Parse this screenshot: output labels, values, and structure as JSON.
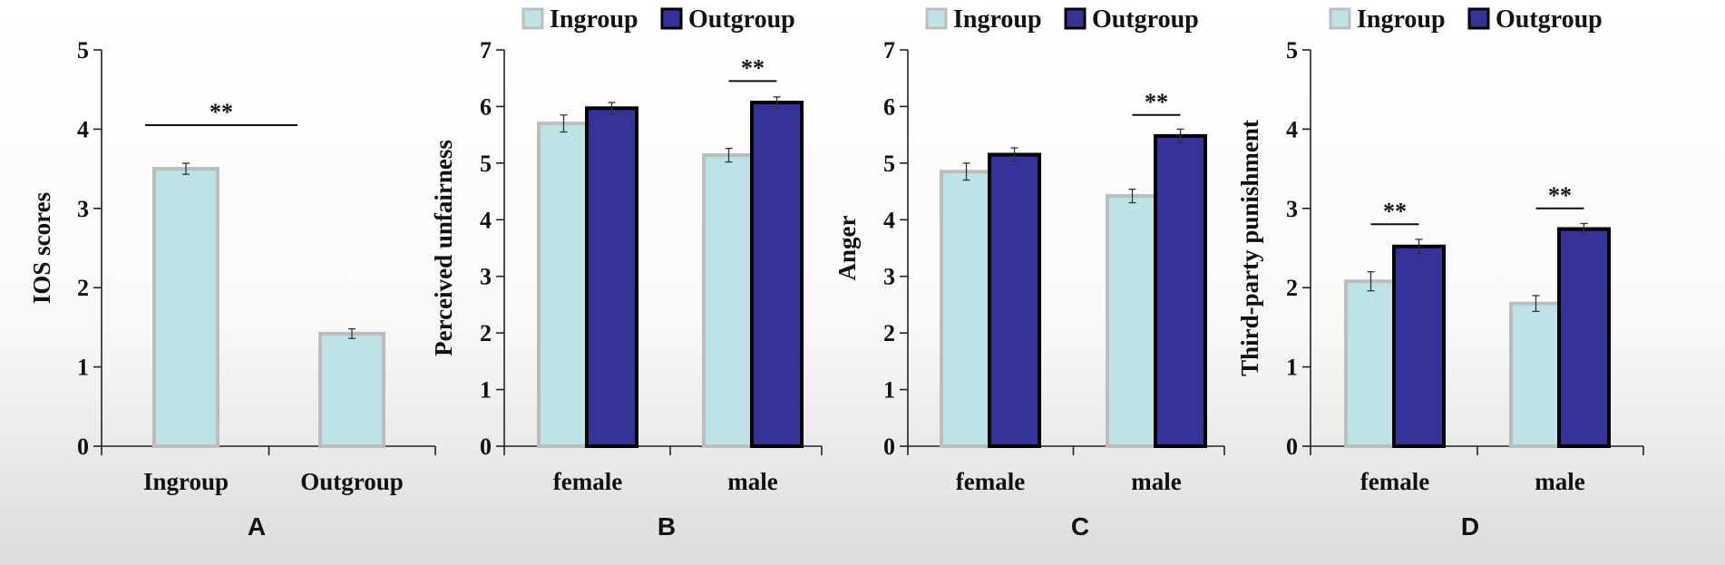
{
  "colors": {
    "ingroup": "#bde3e6",
    "ingroup_border": "#bdbdbd",
    "outgroup": "#333399",
    "outgroup_border": "#000000"
  },
  "chart_data": [
    {
      "panel": "A",
      "type": "bar",
      "title": "",
      "xlabel": "",
      "ylabel": "IOS scores",
      "ylim": [
        0,
        5
      ],
      "yticks": [
        0,
        1,
        2,
        3,
        4,
        5
      ],
      "categories": [
        "Ingroup",
        "Outgroup"
      ],
      "series": [
        {
          "name": "Ingroup",
          "values": [
            3.5,
            1.42
          ],
          "errors": [
            0.07,
            0.06
          ],
          "styles": [
            "ingroup",
            "ingroup"
          ]
        }
      ],
      "legend": [],
      "annotations": [
        {
          "text": "**",
          "from": 0,
          "to": 1,
          "y": 4.05
        }
      ]
    },
    {
      "panel": "B",
      "type": "bar",
      "title": "",
      "xlabel": "",
      "ylabel": "Perceived unfairness",
      "ylim": [
        0,
        7
      ],
      "yticks": [
        0,
        1,
        2,
        3,
        4,
        5,
        6,
        7
      ],
      "categories": [
        "female",
        "male"
      ],
      "series": [
        {
          "name": "Ingroup",
          "values": [
            5.7,
            5.14
          ],
          "errors": [
            0.15,
            0.12
          ]
        },
        {
          "name": "Outgroup",
          "values": [
            5.97,
            6.07
          ],
          "errors": [
            0.1,
            0.1
          ]
        }
      ],
      "legend": [
        "Ingroup",
        "Outgroup"
      ],
      "annotations": [
        {
          "text": "**",
          "category": 1,
          "y": 6.45
        }
      ]
    },
    {
      "panel": "C",
      "type": "bar",
      "title": "",
      "xlabel": "",
      "ylabel": "Anger",
      "ylim": [
        0,
        7
      ],
      "yticks": [
        0,
        1,
        2,
        3,
        4,
        5,
        6,
        7
      ],
      "categories": [
        "female",
        "male"
      ],
      "series": [
        {
          "name": "Ingroup",
          "values": [
            4.85,
            4.42
          ],
          "errors": [
            0.15,
            0.12
          ]
        },
        {
          "name": "Outgroup",
          "values": [
            5.15,
            5.48
          ],
          "errors": [
            0.12,
            0.12
          ]
        }
      ],
      "legend": [
        "Ingroup",
        "Outgroup"
      ],
      "annotations": [
        {
          "text": "**",
          "category": 1,
          "y": 5.85
        }
      ]
    },
    {
      "panel": "D",
      "type": "bar",
      "title": "",
      "xlabel": "",
      "ylabel": "Third-party punishment",
      "ylim": [
        0,
        5
      ],
      "yticks": [
        0,
        1,
        2,
        3,
        4,
        5
      ],
      "categories": [
        "female",
        "male"
      ],
      "series": [
        {
          "name": "Ingroup",
          "values": [
            2.08,
            1.8
          ],
          "errors": [
            0.12,
            0.1
          ]
        },
        {
          "name": "Outgroup",
          "values": [
            2.52,
            2.74
          ],
          "errors": [
            0.09,
            0.07
          ]
        }
      ],
      "legend": [
        "Ingroup",
        "Outgroup"
      ],
      "annotations": [
        {
          "text": "**",
          "category": 0,
          "y": 2.8
        },
        {
          "text": "**",
          "category": 1,
          "y": 3.0
        }
      ]
    }
  ]
}
